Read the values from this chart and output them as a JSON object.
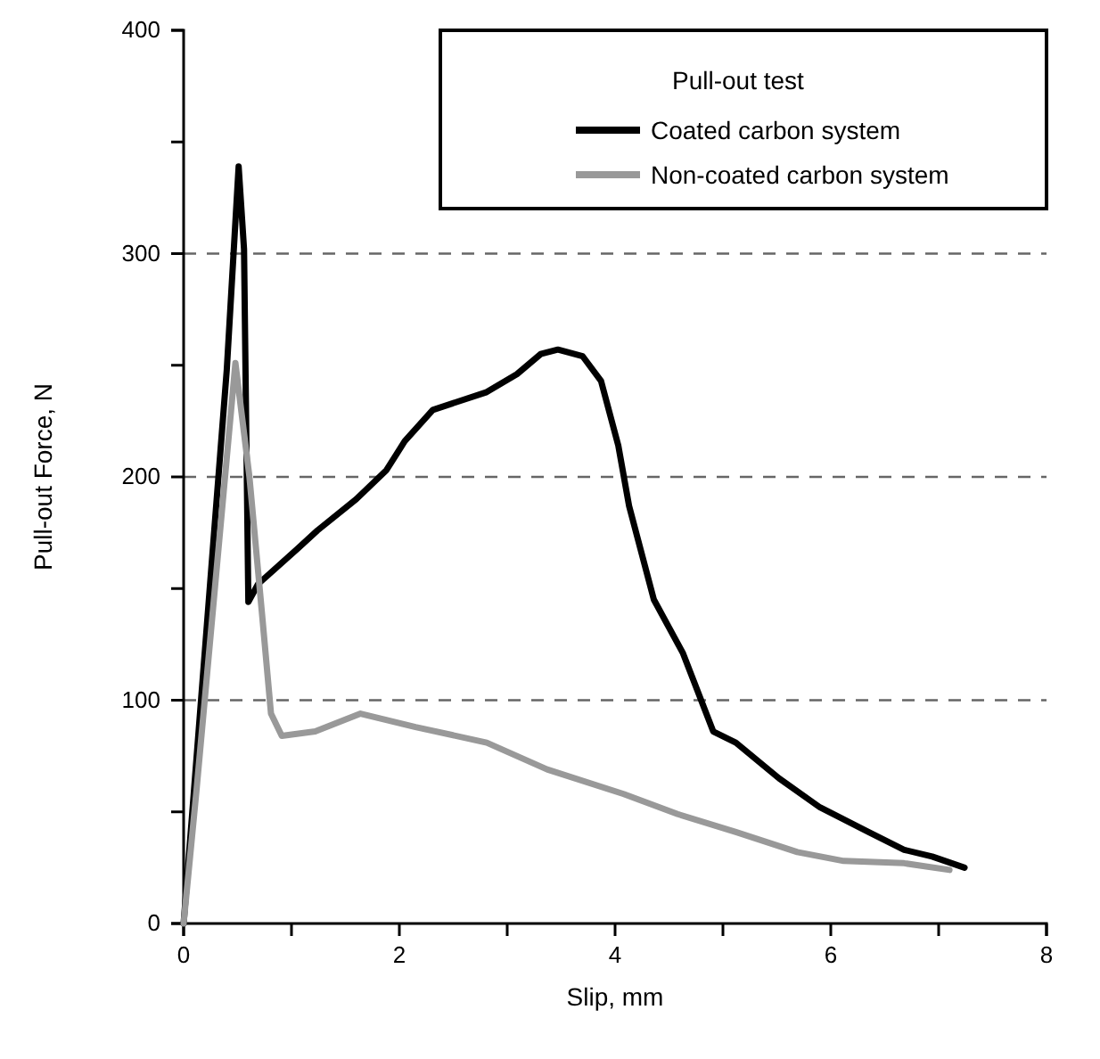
{
  "chart_data": {
    "type": "line",
    "xlabel": "Slip, mm",
    "ylabel": "Pull-out Force, N",
    "legend_title": "Pull-out test",
    "xlim": [
      0,
      8
    ],
    "ylim": [
      0,
      400
    ],
    "xticks": [
      0,
      {
        "value": 1,
        "label": null
      },
      2,
      {
        "value": 3,
        "label": null
      },
      4,
      {
        "value": 5,
        "label": null
      },
      6,
      {
        "value": 7,
        "label": null
      },
      8
    ],
    "yticks": [
      0,
      {
        "value": 50,
        "label": null
      },
      100,
      {
        "value": 150,
        "label": null
      },
      200,
      {
        "value": 250,
        "label": null
      },
      300,
      {
        "value": 350,
        "label": null
      },
      400
    ],
    "grid": "y",
    "legend": "top right",
    "marker": "none",
    "line_style": "solid",
    "series": [
      {
        "name": "Coated carbon system",
        "color": "#000000",
        "x": [
          0,
          0.4,
          0.51,
          0.56,
          0.6,
          0.69,
          1.06,
          1.24,
          1.6,
          1.88,
          2.05,
          2.31,
          2.81,
          3.09,
          3.31,
          3.47,
          3.7,
          3.87,
          4.03,
          4.13,
          4.36,
          4.63,
          4.91,
          5.12,
          5.52,
          5.9,
          6.35,
          6.68,
          6.94,
          7.24
        ],
        "values": [
          0,
          248,
          339,
          302,
          144,
          152,
          168,
          176,
          190,
          203,
          216,
          230,
          238,
          246,
          255,
          257,
          254,
          243,
          214,
          187,
          145,
          121,
          86,
          81,
          65,
          52,
          41,
          33,
          30,
          25
        ]
      },
      {
        "name": "Non-coated carbon system",
        "color": "#999999",
        "x": [
          0,
          0.12,
          0.48,
          0.61,
          0.73,
          0.81,
          0.91,
          1.22,
          1.64,
          2.15,
          2.81,
          3.37,
          4.08,
          4.58,
          5.12,
          5.69,
          6.12,
          6.68,
          7.1
        ],
        "values": [
          0,
          60,
          251,
          200,
          137,
          94,
          84,
          86,
          94,
          88,
          81,
          69,
          58,
          49,
          41,
          32,
          28,
          27,
          24
        ]
      }
    ]
  }
}
